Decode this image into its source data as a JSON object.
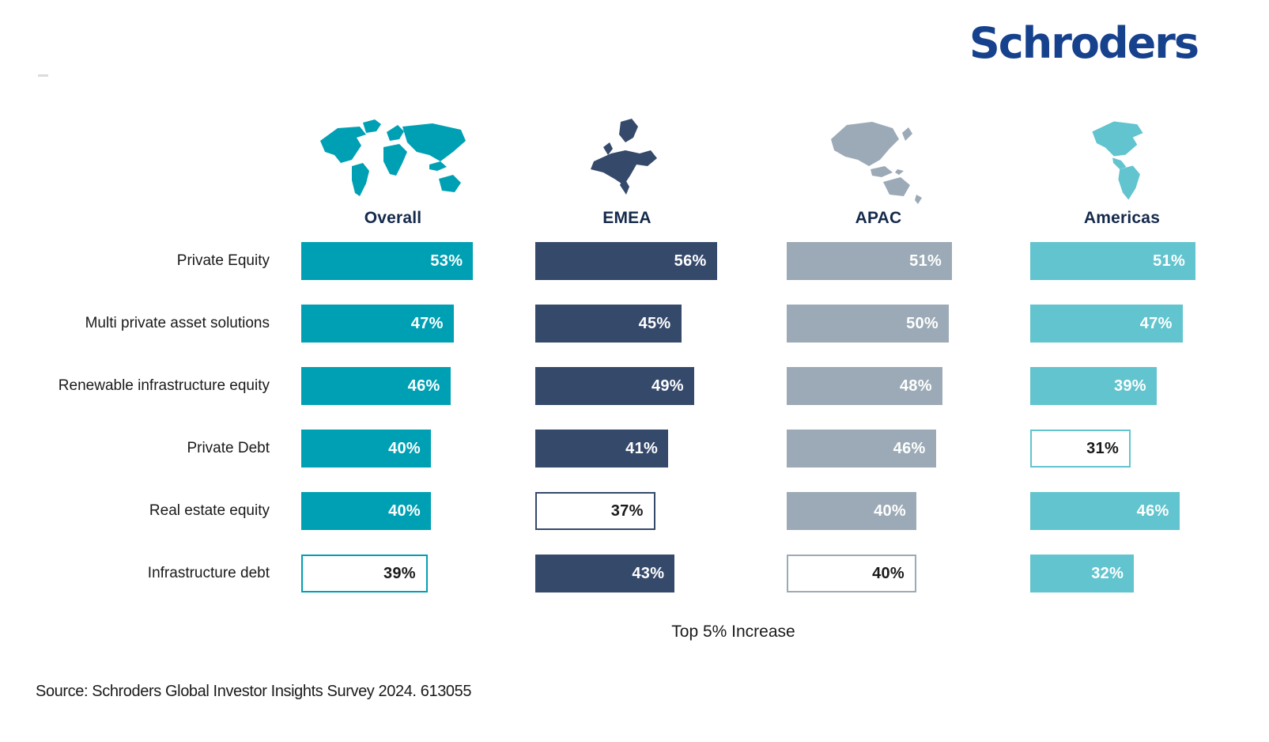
{
  "header": {
    "logo_text": "Schroders",
    "logo_color": "#16418C"
  },
  "columns": [
    {
      "key": "overall",
      "label": "Overall",
      "color": "#00A0B4",
      "icon": "world-map-icon"
    },
    {
      "key": "emea",
      "label": "EMEA",
      "color": "#35496B",
      "icon": "europe-map-icon"
    },
    {
      "key": "apac",
      "label": "APAC",
      "color": "#9BAAB6",
      "icon": "apac-map-icon"
    },
    {
      "key": "americas",
      "label": "Americas",
      "color": "#62C4CE",
      "icon": "americas-map-icon"
    }
  ],
  "chart_data": {
    "type": "bar",
    "orientation": "horizontal",
    "categories": [
      "Private Equity",
      "Multi private asset solutions",
      "Renewable infrastructure equity",
      "Private Debt",
      "Real estate equity",
      "Infrastructure debt"
    ],
    "series": [
      {
        "name": "Overall",
        "color": "#00A0B4",
        "values": [
          53,
          47,
          46,
          40,
          40,
          39
        ],
        "outlined": [
          false,
          false,
          false,
          false,
          false,
          true
        ]
      },
      {
        "name": "EMEA",
        "color": "#35496B",
        "values": [
          56,
          45,
          49,
          41,
          37,
          43
        ],
        "outlined": [
          false,
          false,
          false,
          false,
          true,
          false
        ]
      },
      {
        "name": "APAC",
        "color": "#9BAAB6",
        "values": [
          51,
          50,
          48,
          46,
          40,
          40
        ],
        "outlined": [
          false,
          false,
          false,
          false,
          false,
          true
        ]
      },
      {
        "name": "Americas",
        "color": "#62C4CE",
        "values": [
          51,
          47,
          39,
          31,
          46,
          32
        ],
        "outlined": [
          false,
          false,
          false,
          true,
          false,
          false
        ]
      }
    ],
    "value_suffix": "%",
    "xlim": [
      0,
      60
    ],
    "grid": false,
    "legend_position": "top-as-column-headers",
    "caption": "Top 5% Increase"
  },
  "footer": {
    "source": "Source: Schroders Global Investor Insights Survey 2024. 613055"
  }
}
